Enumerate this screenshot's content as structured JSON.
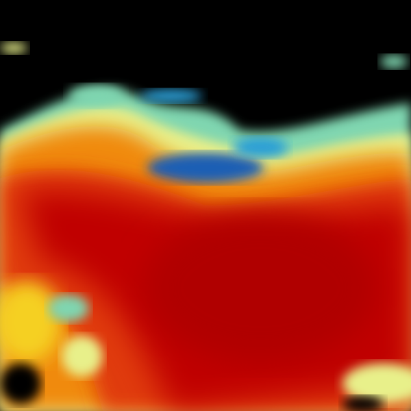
{
  "image": {
    "kind": "radar-reflectivity-field",
    "background_color": "#000000",
    "colormap": [
      "#1a5fb4",
      "#2a9fd6",
      "#7fd6b0",
      "#e8f08a",
      "#f5d020",
      "#f08a10",
      "#e03a08",
      "#c00000",
      "#b00000"
    ]
  }
}
